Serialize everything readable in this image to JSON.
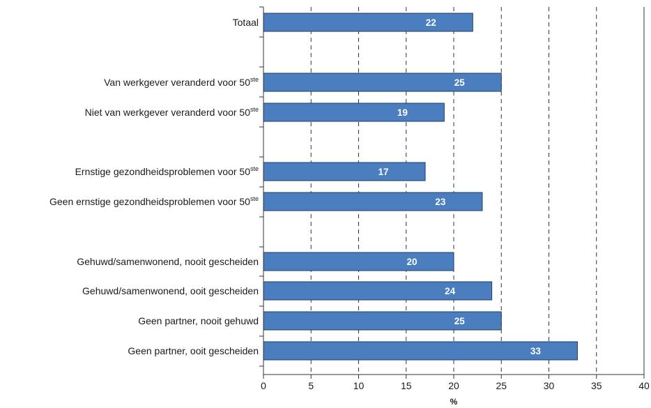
{
  "colors": {
    "bar_fill": "#4a7ebf",
    "bar_stroke": "#1f3f66",
    "axis": "#333333",
    "grid": "#333333",
    "text": "#1a1a1a",
    "data_label": "#ffffff"
  },
  "chart_data": {
    "type": "bar",
    "orientation": "horizontal",
    "xlabel": "%",
    "ylabel": "",
    "xlim": [
      0,
      40
    ],
    "xticks": [
      0,
      5,
      10,
      15,
      20,
      25,
      30,
      35,
      40
    ],
    "grid": "vertical dashed",
    "legend": "none",
    "categories": [
      {
        "label": "Totaal",
        "sup": "",
        "value": 22
      },
      {
        "label": "Van werkgever veranderd voor 50",
        "sup": "ste",
        "value": 25
      },
      {
        "label": "Niet van werkgever veranderd voor 50",
        "sup": "ste",
        "value": 19
      },
      {
        "label": "Ernstige gezondheidsproblemen voor 50",
        "sup": "ste",
        "value": 17
      },
      {
        "label": "Geen ernstige gezondheidsproblemen voor 50",
        "sup": "ste",
        "value": 23
      },
      {
        "label": "Gehuwd/samenwonend, nooit gescheiden",
        "sup": "",
        "value": 20
      },
      {
        "label": "Gehuwd/samenwonend, ooit gescheiden",
        "sup": "",
        "value": 24
      },
      {
        "label": "Geen partner, nooit gehuwd",
        "sup": "",
        "value": 25
      },
      {
        "label": "Geen partner, ooit gescheiden",
        "sup": "",
        "value": 33
      }
    ],
    "groups": [
      [
        0
      ],
      [
        1,
        2
      ],
      [
        3,
        4
      ],
      [
        5,
        6,
        7,
        8
      ]
    ]
  }
}
